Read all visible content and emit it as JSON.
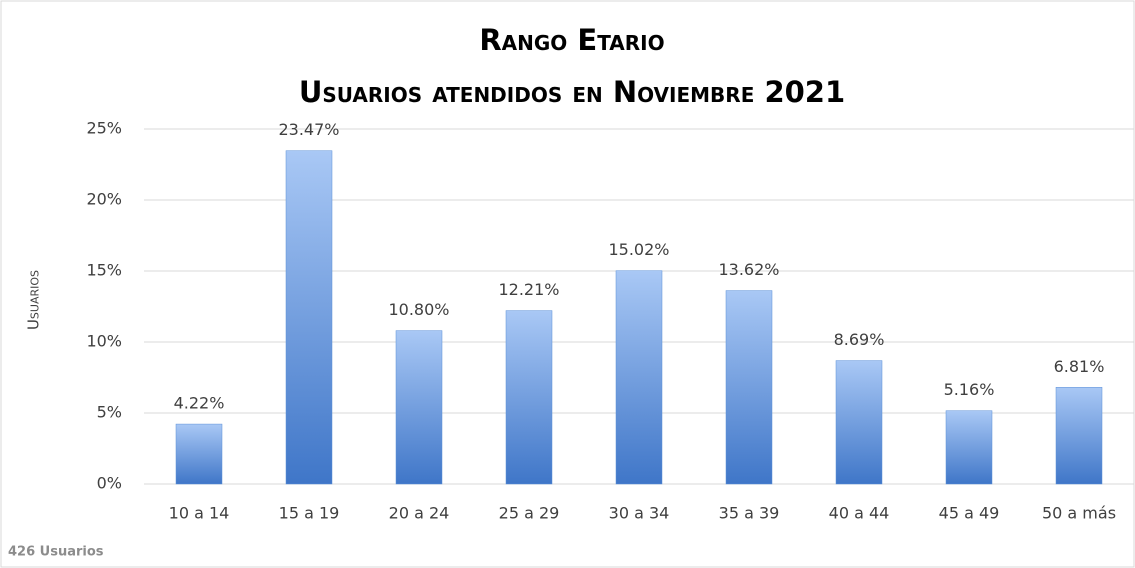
{
  "chart_data": {
    "type": "bar",
    "title": "Rango Etario",
    "subtitle": "Usuarios atendidos en Noviembre 2021",
    "y_label": "Usuarios",
    "note": "426 Usuarios",
    "categories": [
      "10 a 14",
      "15 a 19",
      "20 a 24",
      "25 a 29",
      "30 a 34",
      "35 a 39",
      "40 a 44",
      "45 a 49",
      "50 a más"
    ],
    "values": [
      4.22,
      23.47,
      10.8,
      12.21,
      15.02,
      13.62,
      8.69,
      5.16,
      6.81
    ],
    "value_labels": [
      "4.22%",
      "23.47%",
      "10.80%",
      "12.21%",
      "15.02%",
      "13.62%",
      "8.69%",
      "5.16%",
      "6.81%"
    ],
    "color": "#5b8fd6",
    "ylim": [
      0,
      25
    ],
    "yticks": [
      {
        "value": 0,
        "label": "0%"
      },
      {
        "value": 5,
        "label": "5%"
      },
      {
        "value": 10,
        "label": "10%"
      },
      {
        "value": 15,
        "label": "15%"
      },
      {
        "value": 20,
        "label": "20%"
      },
      {
        "value": 25,
        "label": "25%"
      }
    ],
    "grid": true
  }
}
